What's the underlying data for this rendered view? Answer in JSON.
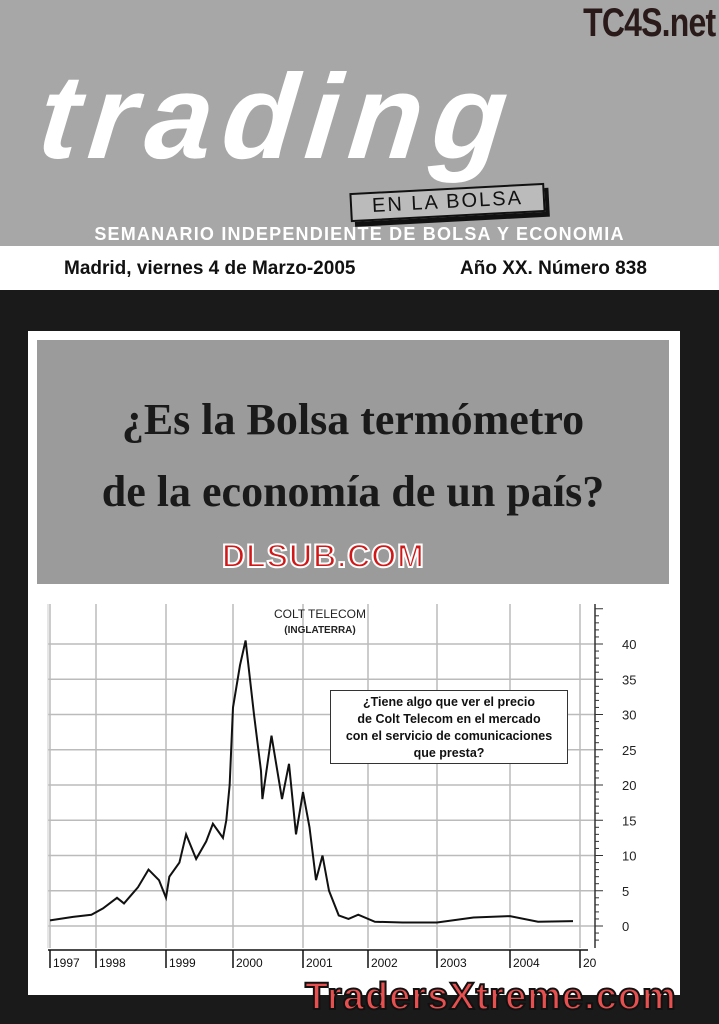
{
  "masthead": {
    "title": "trading",
    "subtitle": "EN LA BOLSA",
    "tagline": "SEMANARIO INDEPENDIENTE DE BOLSA Y ECONOMIA",
    "date": "Madrid, viernes 4 de Marzo-2005",
    "issue": "Año XX. Número 838"
  },
  "headline": {
    "line1": "¿Es la Bolsa termómetro",
    "line2": "de la economía de un país?"
  },
  "watermarks": {
    "top": "TC4S.net",
    "middle": "DLSUB.COM",
    "bottom": "TradersXtreme.com"
  },
  "chart_data": {
    "type": "line",
    "title": "COLT TELECOM",
    "subtitle": "(INGLATERRA)",
    "annotation": "¿Tiene algo que ver el precio de Colt Telecom en el mercado con el servicio de comunicaciones que presta?",
    "annotation_lines": [
      "¿Tiene algo que ver el precio",
      "de Colt Telecom en el mercado",
      "con el servicio de comunicaciones",
      "que presta?"
    ],
    "x_tick_labels": [
      "1997",
      "1998",
      "1999",
      "2000",
      "2001",
      "2002",
      "2003",
      "2004",
      "20"
    ],
    "y_ticks": [
      0,
      5,
      10,
      15,
      20,
      25,
      30,
      35,
      40
    ],
    "ylim": [
      -3,
      45
    ],
    "y_axis": "right",
    "grid": true,
    "x": [
      1997.0,
      1997.5,
      1997.9,
      1998.1,
      1998.3,
      1998.4,
      1998.6,
      1998.75,
      1998.9,
      1999.0,
      1999.05,
      1999.2,
      1999.3,
      1999.45,
      1999.6,
      1999.7,
      1999.85,
      1999.9,
      1999.95,
      2000.0,
      2000.1,
      2000.18,
      2000.3,
      2000.4,
      2000.42,
      2000.55,
      2000.7,
      2000.8,
      2000.9,
      2001.0,
      2001.1,
      2001.2,
      2001.3,
      2001.4,
      2001.55,
      2001.7,
      2001.85,
      2002.1,
      2002.5,
      2003.0,
      2003.5,
      2004.0,
      2004.4,
      2004.9
    ],
    "y": [
      0.8,
      1.3,
      1.6,
      2.5,
      4,
      3.2,
      5.5,
      8,
      6.5,
      4,
      7,
      9,
      13,
      9.5,
      12,
      14.5,
      12.5,
      15,
      20,
      31,
      37,
      40.5,
      30,
      22,
      18,
      27,
      18,
      23,
      13,
      19,
      14,
      6.5,
      10,
      5,
      1.5,
      1.0,
      1.6,
      0.6,
      0.5,
      0.5,
      1.2,
      1.4,
      0.6,
      0.7
    ],
    "line_color": "#111111"
  }
}
